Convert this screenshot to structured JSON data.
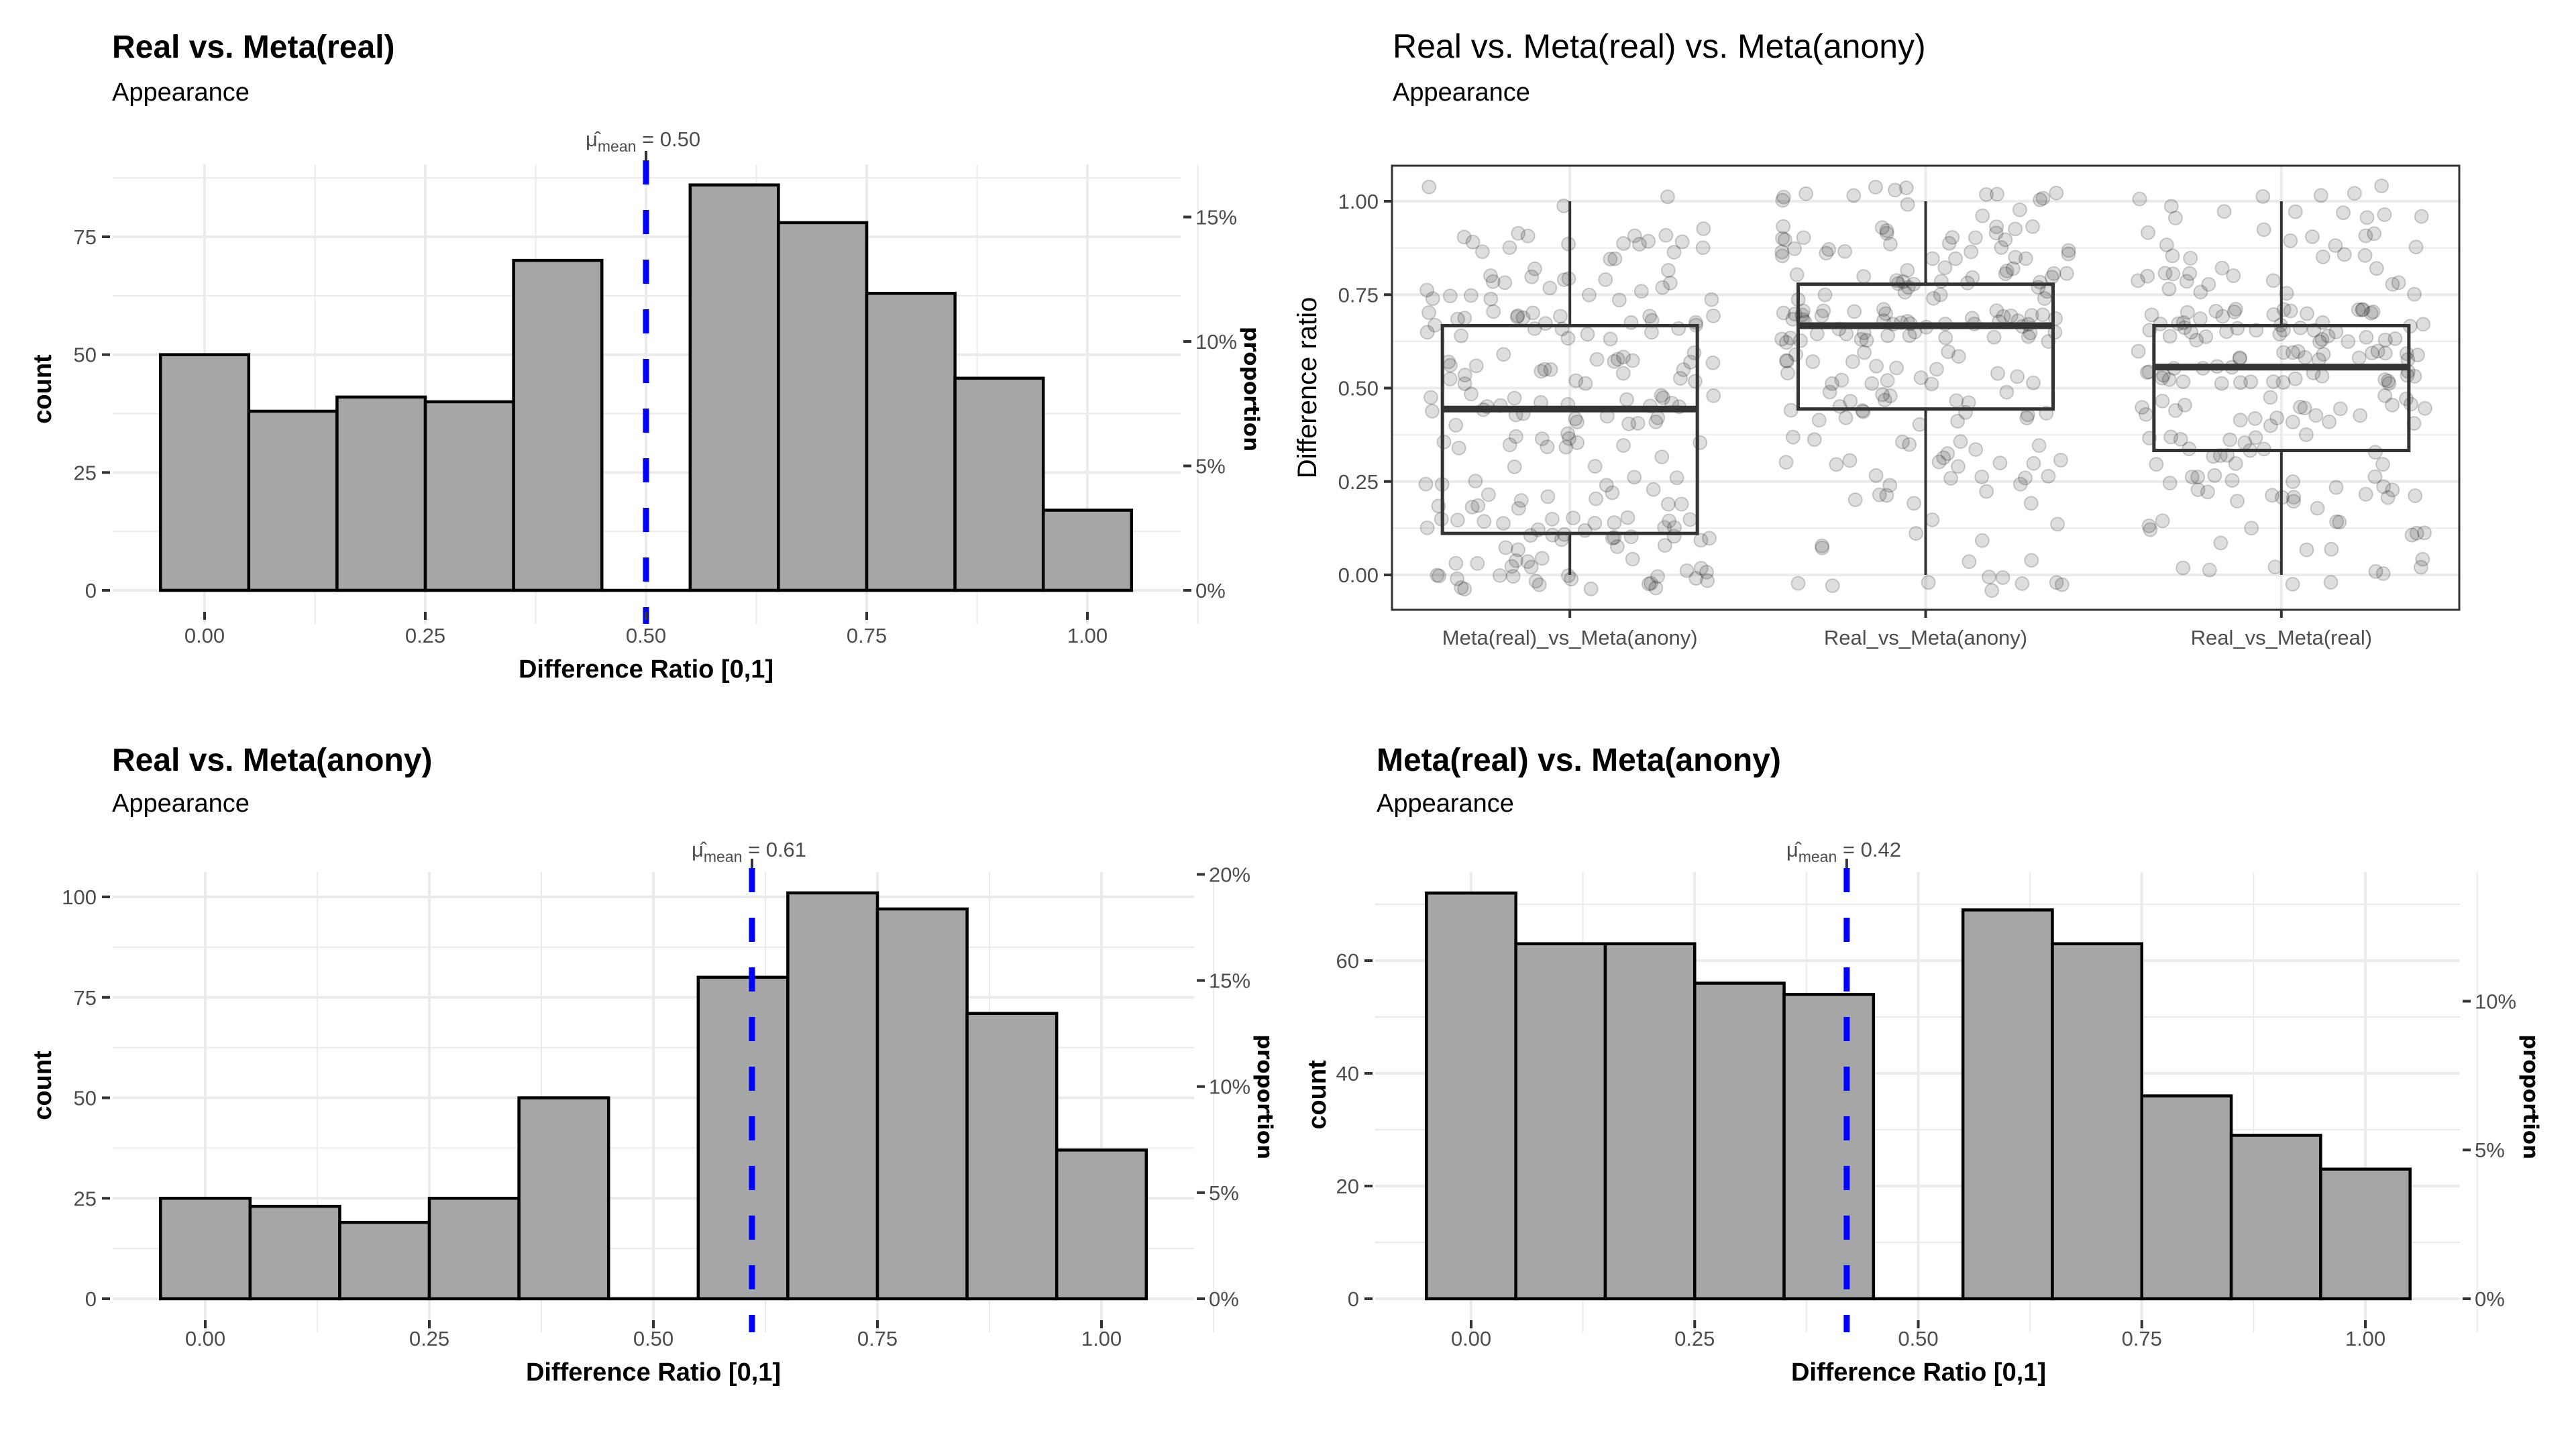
{
  "chart_data": [
    {
      "id": "real_vs_meta_real",
      "type": "bar",
      "title": "Real vs. Meta(real)",
      "subtitle": "Appearance",
      "xlabel": "Difference Ratio [0,1]",
      "ylabel": "count",
      "y2label": "proportion",
      "bin_width": 0.1,
      "bin_centers": [
        0.0,
        0.1,
        0.2,
        0.3,
        0.4,
        0.5,
        0.6,
        0.7,
        0.8,
        0.9,
        1.0
      ],
      "values": [
        50,
        38,
        41,
        40,
        70,
        0,
        86,
        78,
        63,
        45,
        17
      ],
      "xlim": [
        -0.1,
        1.1
      ],
      "ylim": [
        0,
        90
      ],
      "x_ticks": [
        "0.00",
        "0.25",
        "0.50",
        "0.75",
        "1.00"
      ],
      "x_tick_values": [
        0,
        0.25,
        0.5,
        0.75,
        1.0
      ],
      "y_ticks": [
        0,
        25,
        50,
        75
      ],
      "y2_ticks": [
        "0%",
        "5%",
        "10%",
        "15%"
      ],
      "y2_tick_values": [
        0,
        0.05,
        0.1,
        0.15
      ],
      "total": 528,
      "mean": 0.5,
      "mean_label_prefix": "μ̂",
      "mean_label_sub": "mean",
      "mean_label_value": " = 0.50",
      "mean_line_color": "#0000ff",
      "bar_fill": "#a6a6a6",
      "grid": true
    },
    {
      "id": "boxplot_all",
      "type": "box",
      "title": "Real vs. Meta(real) vs. Meta(anony)",
      "subtitle": "Appearance",
      "xlabel": "",
      "ylabel": "Difference ratio",
      "categories": [
        "Meta(real)_vs_Meta(anony)",
        "Real_vs_Meta(anony)",
        "Real_vs_Meta(real)"
      ],
      "boxes": [
        {
          "min": 0.0,
          "q1": 0.111,
          "median": 0.444,
          "q3": 0.667,
          "max": 1.0
        },
        {
          "min": 0.0,
          "q1": 0.444,
          "median": 0.667,
          "q3": 0.778,
          "max": 1.0
        },
        {
          "min": 0.0,
          "q1": 0.333,
          "median": 0.556,
          "q3": 0.667,
          "max": 1.0
        }
      ],
      "jitter_points_per_group": 528,
      "ylim": [
        -0.09,
        1.09
      ],
      "y_ticks": [
        "0.00",
        "0.25",
        "0.50",
        "0.75",
        "1.00"
      ],
      "y_tick_values": [
        0,
        0.25,
        0.5,
        0.75,
        1.0
      ],
      "grid": true
    },
    {
      "id": "real_vs_meta_anony",
      "type": "bar",
      "title": "Real vs. Meta(anony)",
      "subtitle": "Appearance",
      "xlabel": "Difference Ratio [0,1]",
      "ylabel": "count",
      "y2label": "proportion",
      "bin_width": 0.1,
      "bin_centers": [
        0.0,
        0.1,
        0.2,
        0.3,
        0.4,
        0.5,
        0.6,
        0.7,
        0.8,
        0.9,
        1.0
      ],
      "values": [
        25,
        23,
        19,
        25,
        50,
        0,
        80,
        101,
        97,
        71,
        37
      ],
      "xlim": [
        -0.1,
        1.1
      ],
      "ylim": [
        0,
        106
      ],
      "x_ticks": [
        "0.00",
        "0.25",
        "0.50",
        "0.75",
        "1.00"
      ],
      "x_tick_values": [
        0,
        0.25,
        0.5,
        0.75,
        1.0
      ],
      "y_ticks": [
        0,
        25,
        50,
        75,
        100
      ],
      "y2_ticks": [
        "0%",
        "5%",
        "10%",
        "15%",
        "20%"
      ],
      "y2_tick_values": [
        0,
        0.05,
        0.1,
        0.15,
        0.2
      ],
      "total": 528,
      "mean": 0.61,
      "mean_label_prefix": "μ̂",
      "mean_label_sub": "mean",
      "mean_label_value": " = 0.61",
      "mean_line_color": "#0000ff",
      "bar_fill": "#a6a6a6",
      "grid": true
    },
    {
      "id": "meta_real_vs_meta_anony",
      "type": "bar",
      "title": "Meta(real) vs. Meta(anony)",
      "subtitle": "Appearance",
      "xlabel": "Difference Ratio [0,1]",
      "ylabel": "count",
      "y2label": "proportion",
      "bin_width": 0.1,
      "bin_centers": [
        0.0,
        0.1,
        0.2,
        0.3,
        0.4,
        0.5,
        0.6,
        0.7,
        0.8,
        0.9,
        1.0
      ],
      "values": [
        72,
        63,
        63,
        56,
        54,
        0,
        69,
        63,
        36,
        29,
        23
      ],
      "xlim": [
        -0.1,
        1.1
      ],
      "ylim": [
        0,
        75
      ],
      "x_ticks": [
        "0.00",
        "0.25",
        "0.50",
        "0.75",
        "1.00"
      ],
      "x_tick_values": [
        0,
        0.25,
        0.5,
        0.75,
        1.0
      ],
      "y_ticks": [
        0,
        20,
        40,
        60
      ],
      "y2_ticks": [
        "0%",
        "5%",
        "10%"
      ],
      "y2_tick_values": [
        0,
        0.05,
        0.1
      ],
      "total": 528,
      "mean": 0.42,
      "mean_label_prefix": "μ̂",
      "mean_label_sub": "mean",
      "mean_label_value": " = 0.42",
      "mean_line_color": "#0000ff",
      "bar_fill": "#a6a6a6",
      "grid": true
    }
  ]
}
